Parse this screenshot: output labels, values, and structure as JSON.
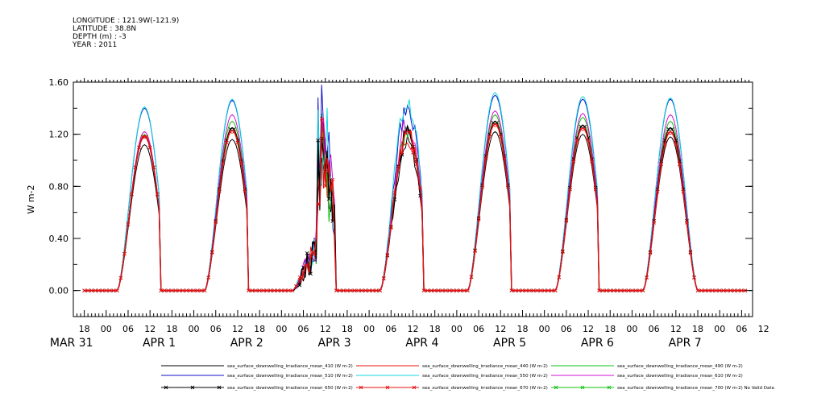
{
  "header": {
    "longitude": "LONGITUDE : 121.9W(-121.9)",
    "latitude": "LATITUDE : 38.8N",
    "depth": "DEPTH (m) : -3",
    "year": "YEAR : 2011"
  },
  "chart_data": {
    "type": "line",
    "title": "",
    "xlabel": "",
    "ylabel": "W m-2",
    "ylim": [
      -0.2,
      1.6
    ],
    "yticks": [
      0.0,
      0.4,
      0.8,
      1.2,
      1.6
    ],
    "ytick_labels": [
      "0.00",
      "0.40",
      "0.80",
      "1.20",
      "1.60"
    ],
    "xlim_hours": [
      -9,
      177
    ],
    "x_day_start": "2011-03-31",
    "hour_labels": [
      "18",
      "00",
      "06",
      "12",
      "18",
      "00",
      "06",
      "12",
      "18",
      "00",
      "06",
      "12",
      "18",
      "00",
      "06",
      "12",
      "18",
      "00",
      "06",
      "12",
      "18",
      "00",
      "06",
      "12",
      "18",
      "00",
      "06",
      "12",
      "18",
      "00",
      "06",
      "12"
    ],
    "day_labels": [
      "MAR 31",
      "APR  1",
      "APR  2",
      "APR  3",
      "APR  4",
      "APR  5",
      "APR  6",
      "APR  7"
    ],
    "daily_peaks": {
      "410": [
        1.12,
        1.16,
        1.2,
        1.17,
        1.22,
        1.2,
        1.18
      ],
      "440": [
        1.18,
        1.23,
        1.22,
        1.23,
        1.28,
        1.25,
        1.22
      ],
      "490": [
        1.2,
        1.3,
        1.25,
        1.28,
        1.35,
        1.33,
        1.3
      ],
      "510": [
        1.4,
        1.46,
        1.5,
        1.46,
        1.5,
        1.47,
        1.47
      ],
      "550": [
        1.41,
        1.47,
        1.55,
        1.52,
        1.52,
        1.49,
        1.48
      ],
      "610": [
        1.22,
        1.35,
        1.38,
        1.35,
        1.38,
        1.36,
        1.35
      ],
      "650": [
        1.19,
        1.25,
        1.3,
        1.25,
        1.3,
        1.27,
        1.25
      ],
      "670": [
        1.19,
        1.23,
        1.32,
        1.25,
        1.28,
        1.25,
        1.22
      ]
    },
    "series": [
      {
        "name": "sea_surface_downwelling_irradiance_mean_410 (W m-2)",
        "key": "410",
        "color": "#000000",
        "marker": false
      },
      {
        "name": "sea_surface_downwelling_irradiance_mean_440 (W m-2)",
        "key": "440",
        "color": "#e81010",
        "marker": false
      },
      {
        "name": "sea_surface_downwelling_irradiance_mean_490 (W m-2)",
        "key": "490",
        "color": "#10c010",
        "marker": false
      },
      {
        "name": "sea_surface_downwelling_irradiance_mean_510 (W m-2)",
        "key": "510",
        "color": "#1010c8",
        "marker": false
      },
      {
        "name": "sea_surface_downwelling_irradiance_mean_550 (W m-2)",
        "key": "550",
        "color": "#10d8e0",
        "marker": false
      },
      {
        "name": "sea_surface_downwelling_irradiance_mean_610 (W m-2)",
        "key": "610",
        "color": "#d010d0",
        "marker": false
      },
      {
        "name": "sea_surface_downwelling_irradiance_mean_650 (W m-2)",
        "key": "650",
        "color": "#000000",
        "marker": true
      },
      {
        "name": "sea_surface_downwelling_irradiance_mean_670 (W m-2)",
        "key": "670",
        "color": "#e81010",
        "marker": true
      },
      {
        "name": "sea_surface_downwelling_irradiance_mean_700 (W m-2) No Valid Data",
        "key": "700",
        "color": "#10c010",
        "marker": true,
        "no_data": true
      }
    ]
  }
}
